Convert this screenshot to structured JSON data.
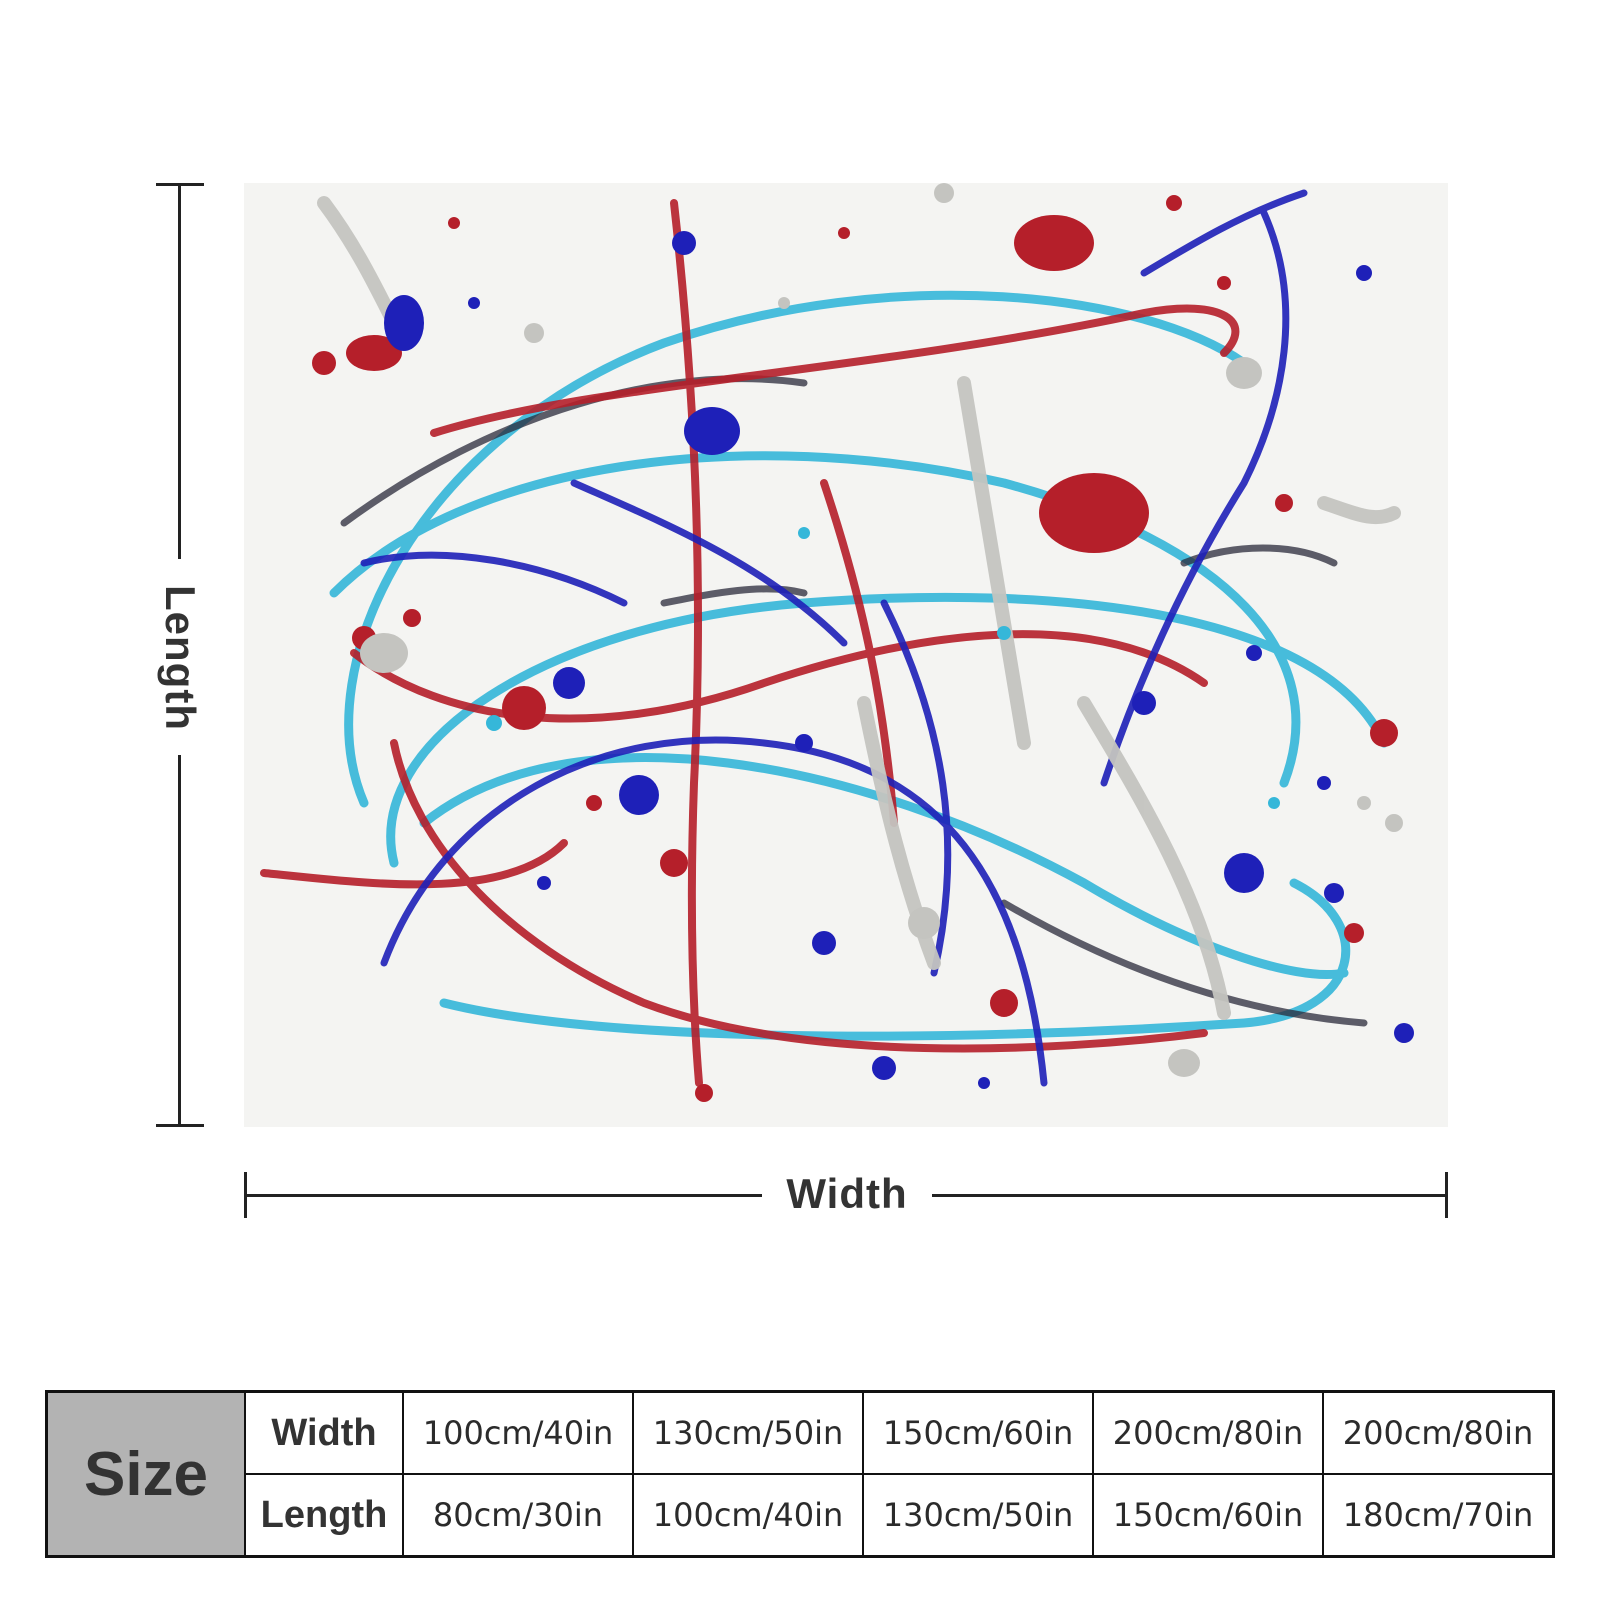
{
  "product_image": {
    "icon": "abstract-splatter-painting",
    "colors": [
      "#b51f2a",
      "#1e20b8",
      "#35b7d9",
      "#c4c4c0",
      "#2a2a3a"
    ]
  },
  "dimensions": {
    "length_label": "Length",
    "width_label": "Width"
  },
  "size_table": {
    "header": "Size",
    "width_label": "Width",
    "length_label": "Length",
    "widths": [
      "100cm/40in",
      "130cm/50in",
      "150cm/60in",
      "200cm/80in",
      "200cm/80in"
    ],
    "lengths": [
      "80cm/30in",
      "100cm/40in",
      "130cm/50in",
      "150cm/60in",
      "180cm/70in"
    ]
  }
}
